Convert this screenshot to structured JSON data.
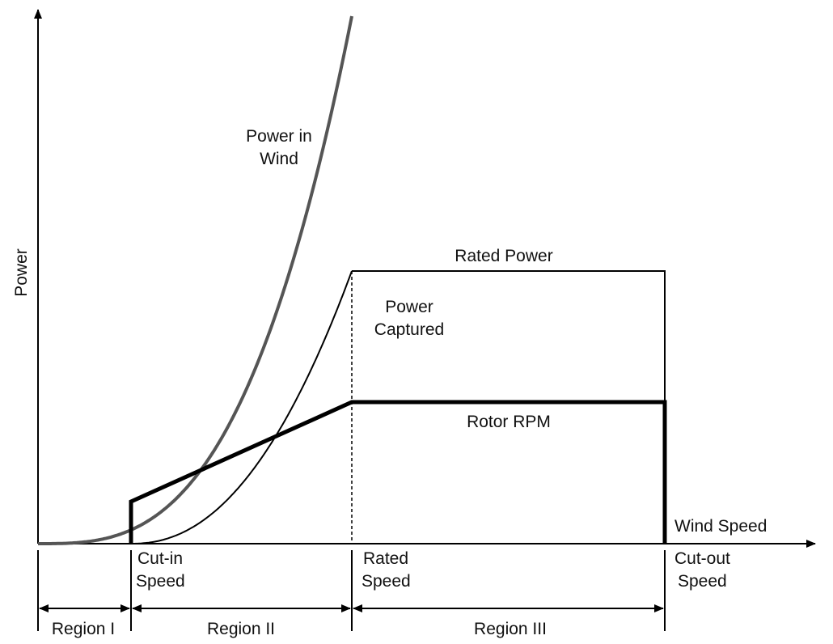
{
  "labels": {
    "y_axis": "Power",
    "x_axis": "Wind Speed",
    "power_in_wind": [
      "Power in",
      "Wind"
    ],
    "rated_power": "Rated Power",
    "power_captured": [
      "Power",
      "Captured"
    ],
    "rotor_rpm": "Rotor RPM",
    "cut_in_speed": [
      "Cut-in",
      "Speed"
    ],
    "rated_speed": [
      "Rated",
      "Speed"
    ],
    "cut_out_speed": [
      "Cut-out",
      "Speed"
    ],
    "region_1": "Region I",
    "region_2": "Region II",
    "region_3": "Region III"
  },
  "colors": {
    "power_in_wind": "#555555",
    "lines": "#000000"
  }
}
